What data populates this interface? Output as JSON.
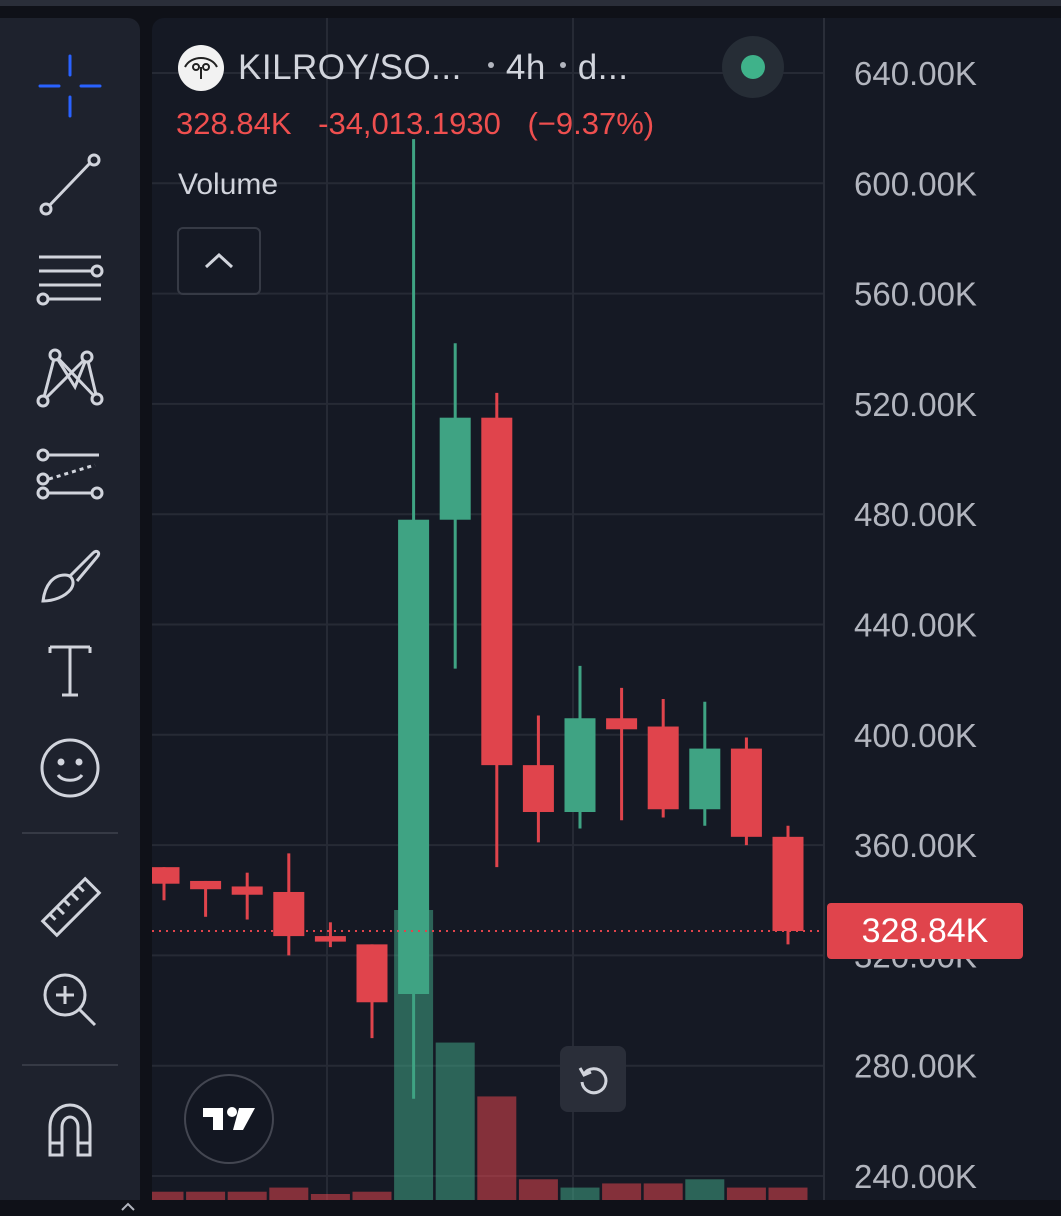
{
  "header": {
    "symbol": "KILROY/SO...",
    "interval": "4h",
    "exchange": "d...",
    "last_price": "328.84K",
    "change": "-34,013.1930",
    "change_pct": "(−9.37%)",
    "status_color": "#3fb28a"
  },
  "volume_label": "Volume",
  "price_tag": "328.84K",
  "toolbar": {
    "icons": [
      "crosshair-icon",
      "trend-line-icon",
      "fib-retracement-icon",
      "pattern-icon",
      "forecast-icon",
      "brush-icon",
      "text-icon",
      "emoji-icon",
      "ruler-icon",
      "zoom-in-icon",
      "magnet-icon"
    ]
  },
  "colors": {
    "up": "#3fa383",
    "down": "#e0444c",
    "background": "#151924",
    "grid": "#262a35"
  },
  "chart_data": {
    "type": "candlestick",
    "y_tick_labels": [
      "640.00K",
      "600.00K",
      "560.00K",
      "520.00K",
      "480.00K",
      "440.00K",
      "400.00K",
      "360.00K",
      "320.00K",
      "280.00K",
      "240.00K"
    ],
    "ylim": [
      238000,
      648000
    ],
    "last_price": 328840,
    "grid": true,
    "candles": [
      {
        "o": 352000,
        "h": 352000,
        "l": 340000,
        "c": 346000
      },
      {
        "o": 347000,
        "h": 347000,
        "l": 334000,
        "c": 344000
      },
      {
        "o": 345000,
        "h": 350000,
        "l": 333000,
        "c": 342000
      },
      {
        "o": 343000,
        "h": 357000,
        "l": 320000,
        "c": 327000
      },
      {
        "o": 327000,
        "h": 332000,
        "l": 323000,
        "c": 325000
      },
      {
        "o": 324000,
        "h": 324000,
        "l": 290000,
        "c": 303000
      },
      {
        "o": 306000,
        "h": 616000,
        "l": 268000,
        "c": 478000
      },
      {
        "o": 478000,
        "h": 542000,
        "l": 424000,
        "c": 515000
      },
      {
        "o": 515000,
        "h": 524000,
        "l": 352000,
        "c": 389000
      },
      {
        "o": 389000,
        "h": 407000,
        "l": 361000,
        "c": 372000
      },
      {
        "o": 372000,
        "h": 425000,
        "l": 366000,
        "c": 406000
      },
      {
        "o": 406000,
        "h": 417000,
        "l": 369000,
        "c": 402000
      },
      {
        "o": 403000,
        "h": 413000,
        "l": 370000,
        "c": 373000
      },
      {
        "o": 373000,
        "h": 412000,
        "l": 367000,
        "c": 395000
      },
      {
        "o": 395000,
        "h": 399000,
        "l": 360000,
        "c": 363000
      },
      {
        "o": 363000,
        "h": 367000,
        "l": 324000,
        "c": 328840
      }
    ],
    "volume": [
      2,
      2,
      2,
      3,
      1,
      2,
      70,
      38,
      25,
      5,
      3,
      4,
      4,
      5,
      3,
      3
    ]
  }
}
